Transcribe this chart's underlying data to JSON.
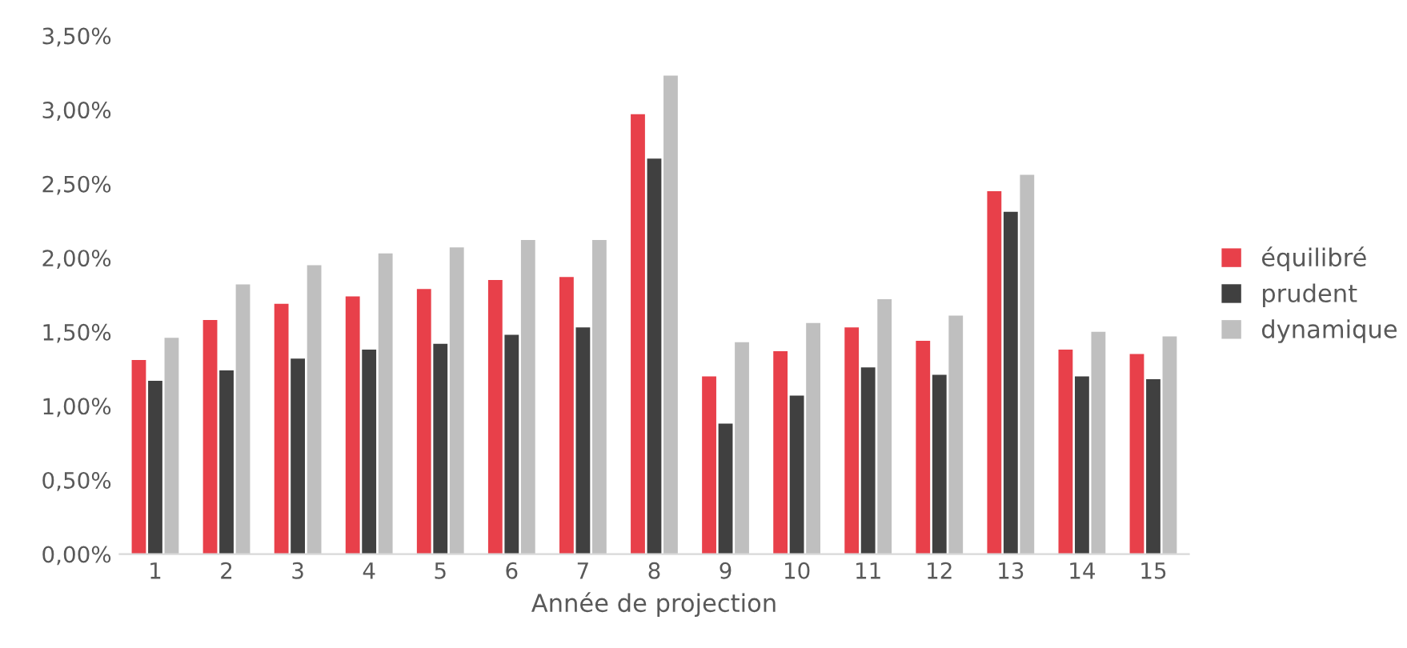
{
  "chart_data": {
    "type": "bar",
    "xlabel": "Année de projection",
    "categories": [
      "1",
      "2",
      "3",
      "4",
      "5",
      "6",
      "7",
      "8",
      "9",
      "10",
      "11",
      "12",
      "13",
      "14",
      "15"
    ],
    "series": [
      {
        "name": "équilibré",
        "color": "#e8404a",
        "values": [
          1.31,
          1.58,
          1.69,
          1.74,
          1.79,
          1.85,
          1.87,
          2.97,
          1.2,
          1.37,
          1.53,
          1.44,
          2.45,
          1.38,
          1.35
        ]
      },
      {
        "name": "prudent",
        "color": "#404040",
        "values": [
          1.17,
          1.24,
          1.32,
          1.38,
          1.42,
          1.48,
          1.53,
          2.67,
          0.88,
          1.07,
          1.26,
          1.21,
          2.31,
          1.2,
          1.18
        ]
      },
      {
        "name": "dynamique",
        "color": "#bfbfbf",
        "values": [
          1.46,
          1.82,
          1.95,
          2.03,
          2.07,
          2.12,
          2.12,
          3.23,
          1.43,
          1.56,
          1.72,
          1.61,
          2.56,
          1.5,
          1.47
        ]
      }
    ],
    "ylim": [
      0,
      3.5
    ],
    "yticks": [
      {
        "value": 0,
        "label": "0,00%"
      },
      {
        "value": 0.5,
        "label": "0,50%"
      },
      {
        "value": 1,
        "label": "1,00%"
      },
      {
        "value": 1.5,
        "label": "1,50%"
      },
      {
        "value": 2,
        "label": "2,00%"
      },
      {
        "value": 2.5,
        "label": "2,50%"
      },
      {
        "value": 3,
        "label": "3,00%"
      },
      {
        "value": 3.5,
        "label": "3,50%"
      }
    ],
    "grid": false,
    "legend": "right"
  }
}
